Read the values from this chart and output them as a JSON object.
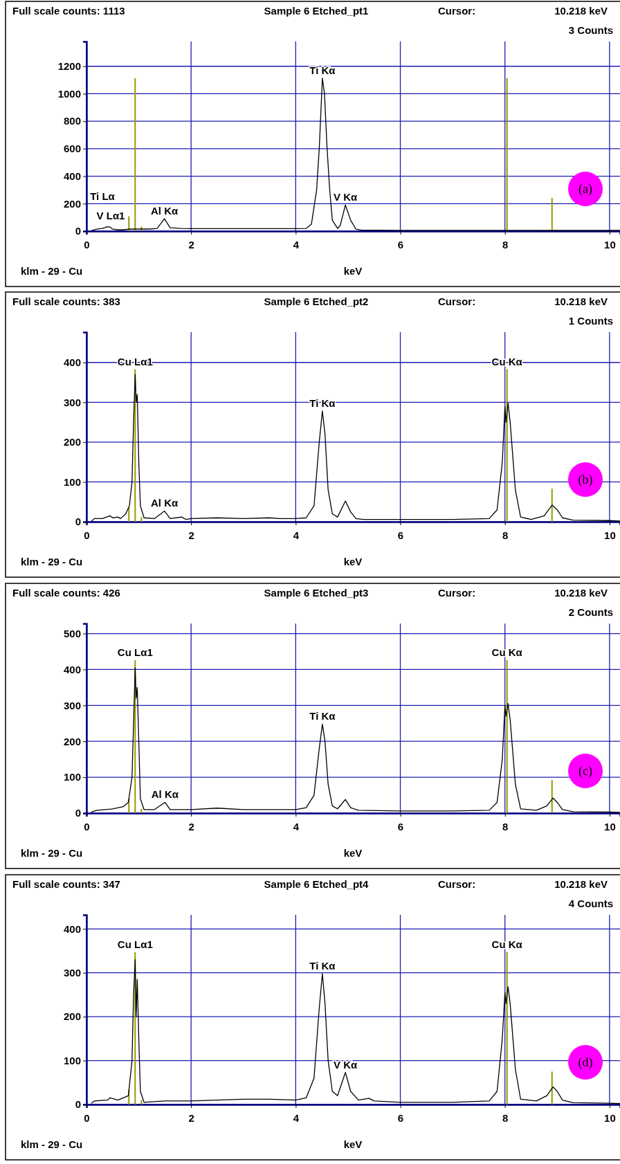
{
  "chart_data": [
    {
      "type": "line",
      "title": "Sample 6 Etched_pt1",
      "xlabel": "keV",
      "xlim": [
        0,
        10.2
      ],
      "xticks": [
        0,
        2,
        4,
        6,
        8,
        10
      ],
      "ylim": [
        0,
        1380
      ],
      "yticks": [
        0,
        200,
        400,
        600,
        800,
        1000,
        1200
      ],
      "grid": true,
      "annotations": [
        "Full scale counts: 1113",
        "Cursor:",
        "10.218 keV",
        "3 Counts",
        "klm - 29 - Cu",
        "(a)",
        "Ti Lα",
        "V Lα1",
        {
          "text": "Ti Kα",
          "x": 4.51,
          "y": 1113
        },
        {
          "text": "V Kα",
          "x": 4.95,
          "y": 190
        },
        {
          "text": "Al Kα",
          "x": 1.49,
          "y": 90
        }
      ],
      "series": [
        {
          "color": "#000000",
          "x": [
            0.1,
            0.2,
            0.3,
            0.4,
            0.45,
            0.5,
            0.6,
            0.7,
            0.85,
            1.0,
            1.2,
            1.35,
            1.49,
            1.6,
            1.8,
            2.0,
            2.5,
            3.0,
            3.5,
            4.0,
            4.2,
            4.3,
            4.4,
            4.45,
            4.51,
            4.55,
            4.6,
            4.65,
            4.7,
            4.8,
            4.85,
            4.95,
            5.05,
            5.15,
            5.25,
            6.0,
            7.0,
            8.0,
            9.0,
            10.2
          ],
          "values": [
            5,
            15,
            20,
            32,
            30,
            15,
            10,
            10,
            15,
            15,
            15,
            20,
            90,
            25,
            20,
            18,
            18,
            18,
            18,
            18,
            20,
            50,
            300,
            600,
            1113,
            1000,
            600,
            300,
            80,
            20,
            40,
            190,
            80,
            15,
            8,
            6,
            6,
            6,
            5,
            5
          ]
        },
        {
          "type": "bar",
          "color": "#999900",
          "x": [
            0.81,
            0.93,
            1.05,
            8.04,
            8.9
          ],
          "values": [
            108,
            1113,
            33,
            1113,
            242
          ]
        }
      ]
    },
    {
      "type": "line",
      "title": "Sample 6 Etched_pt2",
      "xlabel": "keV",
      "xlim": [
        0,
        10.2
      ],
      "xticks": [
        0,
        2,
        4,
        6,
        8,
        10
      ],
      "ylim": [
        0,
        476
      ],
      "yticks": [
        0,
        100,
        200,
        300,
        400
      ],
      "grid": true,
      "annotations": [
        "Full scale counts: 383",
        "Cursor:",
        "10.218 keV",
        "1 Counts",
        "klm - 29 - Cu",
        "(b)",
        {
          "text": "Cu Lα1",
          "x": 0.93,
          "y": 370
        },
        {
          "text": "Ti Kα",
          "x": 4.51,
          "y": 278
        },
        {
          "text": "Cu Kα",
          "x": 8.04,
          "y": 383
        },
        {
          "text": "Al Kα",
          "x": 1.49,
          "y": 27
        }
      ],
      "series": [
        {
          "color": "#000000",
          "x": [
            0.1,
            0.15,
            0.3,
            0.45,
            0.5,
            0.6,
            0.65,
            0.75,
            0.82,
            0.87,
            0.9,
            0.93,
            0.95,
            0.97,
            1.0,
            1.03,
            1.1,
            1.3,
            1.49,
            1.6,
            1.82,
            1.9,
            2.0,
            2.5,
            3.0,
            3.5,
            3.7,
            4.0,
            4.2,
            4.35,
            4.45,
            4.51,
            4.56,
            4.62,
            4.7,
            4.8,
            4.95,
            5.05,
            5.15,
            5.3,
            6.0,
            7.0,
            7.7,
            7.85,
            7.95,
            8.0,
            8.02,
            8.06,
            8.1,
            8.2,
            8.3,
            8.5,
            8.75,
            8.9,
            9.0,
            9.1,
            9.3,
            10.0,
            10.2
          ],
          "values": [
            2,
            8,
            8,
            15,
            10,
            12,
            8,
            20,
            40,
            100,
            250,
            370,
            300,
            320,
            150,
            40,
            10,
            8,
            27,
            8,
            12,
            6,
            8,
            10,
            8,
            10,
            8,
            8,
            10,
            40,
            200,
            278,
            220,
            80,
            20,
            12,
            52,
            25,
            8,
            6,
            6,
            6,
            8,
            30,
            150,
            290,
            250,
            298,
            250,
            80,
            12,
            6,
            15,
            42,
            30,
            10,
            4,
            3,
            2
          ]
        },
        {
          "type": "bar",
          "color": "#999900",
          "x": [
            0.81,
            0.93,
            1.05,
            8.04,
            8.9
          ],
          "values": [
            37,
            383,
            12,
            383,
            83
          ]
        }
      ]
    },
    {
      "type": "line",
      "title": "Sample 6 Etched_pt3",
      "xlabel": "keV",
      "xlim": [
        0,
        10.2
      ],
      "xticks": [
        0,
        2,
        4,
        6,
        8,
        10
      ],
      "ylim": [
        0,
        528
      ],
      "yticks": [
        0,
        100,
        200,
        300,
        400,
        500
      ],
      "grid": true,
      "annotations": [
        "Full scale counts: 426",
        "Cursor:",
        "10.218 keV",
        "2 Counts",
        "klm - 29 - Cu",
        "(c)",
        {
          "text": "Cu Lα1",
          "x": 0.93,
          "y": 405
        },
        {
          "text": "Ti Kα",
          "x": 4.51,
          "y": 248
        },
        {
          "text": "Cu Kα",
          "x": 8.04,
          "y": 426
        },
        {
          "text": "Al Kα",
          "x": 1.5,
          "y": 30
        }
      ],
      "series": [
        {
          "color": "#000000",
          "x": [
            0.1,
            0.2,
            0.5,
            0.7,
            0.8,
            0.87,
            0.9,
            0.93,
            0.95,
            0.97,
            1.0,
            1.03,
            1.1,
            1.3,
            1.5,
            1.6,
            2.0,
            2.5,
            3.0,
            3.5,
            4.0,
            4.2,
            4.35,
            4.45,
            4.51,
            4.56,
            4.62,
            4.7,
            4.8,
            4.95,
            5.05,
            5.2,
            6.0,
            7.0,
            7.7,
            7.85,
            7.95,
            8.0,
            8.02,
            8.06,
            8.1,
            8.2,
            8.3,
            8.6,
            8.8,
            8.92,
            9.0,
            9.1,
            9.3,
            10.0,
            10.2
          ],
          "values": [
            3,
            8,
            12,
            18,
            30,
            100,
            250,
            405,
            320,
            350,
            200,
            40,
            10,
            10,
            30,
            10,
            10,
            14,
            10,
            10,
            10,
            15,
            50,
            180,
            248,
            200,
            80,
            20,
            12,
            38,
            15,
            8,
            6,
            6,
            8,
            30,
            150,
            300,
            270,
            305,
            260,
            80,
            12,
            8,
            20,
            42,
            30,
            10,
            4,
            3,
            2
          ]
        },
        {
          "type": "bar",
          "color": "#999900",
          "x": [
            0.81,
            0.93,
            1.05,
            8.04,
            8.9
          ],
          "values": [
            41,
            426,
            12,
            426,
            92
          ]
        }
      ]
    },
    {
      "type": "line",
      "title": "Sample 6 Etched_pt4",
      "xlabel": "keV",
      "xlim": [
        0,
        10.2
      ],
      "xticks": [
        0,
        2,
        4,
        6,
        8,
        10
      ],
      "ylim": [
        0,
        432
      ],
      "yticks": [
        0,
        100,
        200,
        300,
        400
      ],
      "grid": true,
      "annotations": [
        "Full scale counts: 347",
        "Cursor:",
        "10.218 keV",
        "4 Counts",
        "klm - 29 - Cu",
        "(d)",
        {
          "text": "Cu Lα1",
          "x": 0.93,
          "y": 330
        },
        {
          "text": "Ti Kα",
          "x": 4.51,
          "y": 298
        },
        {
          "text": "V Kα",
          "x": 4.95,
          "y": 73
        },
        {
          "text": "Cu Kα",
          "x": 8.04,
          "y": 347
        }
      ],
      "series": [
        {
          "color": "#000000",
          "x": [
            0.1,
            0.15,
            0.4,
            0.45,
            0.6,
            0.8,
            0.87,
            0.9,
            0.93,
            0.95,
            0.97,
            1.0,
            1.03,
            1.1,
            1.5,
            2.0,
            2.5,
            3.0,
            3.5,
            4.0,
            4.2,
            4.35,
            4.45,
            4.51,
            4.56,
            4.62,
            4.7,
            4.8,
            4.95,
            5.05,
            5.2,
            5.4,
            5.5,
            6.0,
            7.0,
            7.7,
            7.85,
            7.95,
            8.0,
            8.02,
            8.06,
            8.1,
            8.2,
            8.3,
            8.6,
            8.8,
            8.92,
            9.0,
            9.1,
            9.3,
            10.0,
            10.2
          ],
          "values": [
            3,
            8,
            10,
            15,
            10,
            20,
            100,
            250,
            330,
            200,
            285,
            150,
            30,
            5,
            8,
            8,
            10,
            12,
            12,
            10,
            15,
            60,
            220,
            298,
            230,
            100,
            30,
            20,
            73,
            30,
            10,
            14,
            8,
            5,
            5,
            8,
            30,
            150,
            255,
            230,
            268,
            230,
            80,
            12,
            8,
            20,
            40,
            30,
            10,
            4,
            3,
            2
          ]
        },
        {
          "type": "bar",
          "color": "#999900",
          "x": [
            0.81,
            0.93,
            1.05,
            8.04,
            8.9
          ],
          "values": [
            34,
            347,
            10,
            347,
            75
          ]
        }
      ]
    }
  ]
}
